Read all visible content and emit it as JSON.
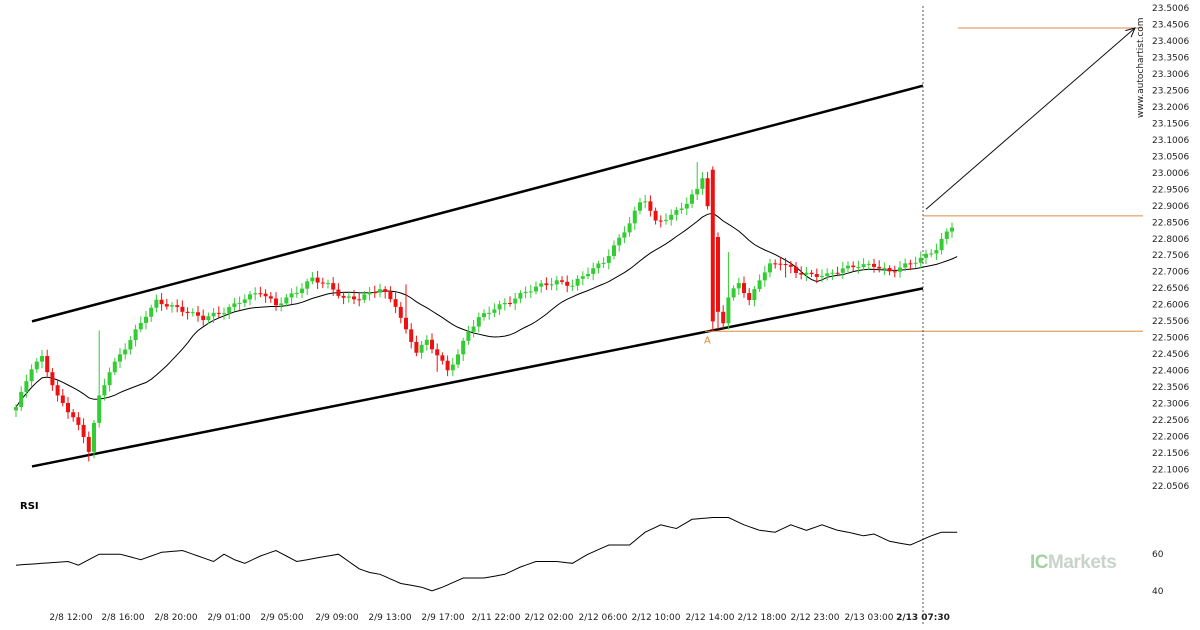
{
  "chart_data": {
    "type": "candlestick",
    "price_axis": {
      "ylim": [
        22.0506,
        23.5006
      ],
      "tick_labels": [
        "23.5006",
        "23.4506",
        "23.4006",
        "23.3506",
        "23.3006",
        "23.2506",
        "23.2006",
        "23.1506",
        "23.1006",
        "23.0506",
        "23.0006",
        "22.9506",
        "22.9006",
        "22.8506",
        "22.8006",
        "22.7506",
        "22.7006",
        "22.6506",
        "22.6006",
        "22.5506",
        "22.5006",
        "22.4506",
        "22.4006",
        "22.3506",
        "22.3006",
        "22.2506",
        "22.2006",
        "22.1506",
        "22.1006",
        "22.0506"
      ]
    },
    "x_tick_labels": [
      "2/8 12:00",
      "2/8 16:00",
      "2/8 20:00",
      "2/9 01:00",
      "2/9 05:00",
      "2/9 09:00",
      "2/9 13:00",
      "2/9 17:00",
      "2/11 22:00",
      "2/12 02:00",
      "2/12 06:00",
      "2/12 10:00",
      "2/12 14:00",
      "2/12 18:00",
      "2/12 23:00",
      "2/13 03:00",
      "2/13 07:30"
    ],
    "highlight_tick": "2/13 07:30",
    "candles": [],
    "moving_average": [],
    "channel": {
      "upper": [
        [
          0,
          22.55
        ],
        [
          180,
          23.265
        ]
      ],
      "lower": [
        [
          0,
          22.11
        ],
        [
          180,
          22.65
        ]
      ]
    },
    "levels": {
      "support": 22.52,
      "current": 22.87,
      "target": 23.44
    },
    "point_label": "A",
    "rsi": {
      "label": "RSI",
      "tick_labels": [
        "60",
        "40"
      ],
      "ylim": [
        35,
        95
      ],
      "values": []
    }
  },
  "watermark": "www.autochartist.com",
  "brand": {
    "prefix": "IC",
    "name": "Markets"
  },
  "colors": {
    "up": "#33cc33",
    "down": "#ee1111",
    "channel": "#000000",
    "level": "#e08a3c",
    "ma": "#000000",
    "rsi": "#000000",
    "grid_text": "#222222"
  }
}
